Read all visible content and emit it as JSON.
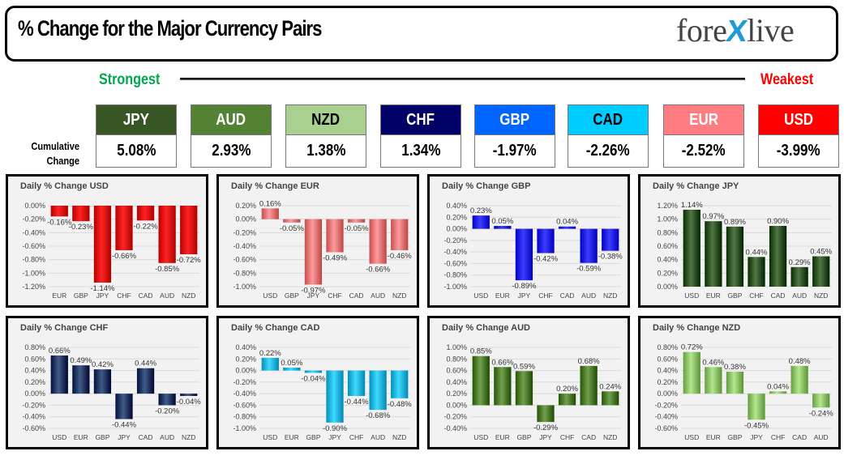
{
  "header": {
    "title": "% Change for the Major Currency Pairs",
    "logo": {
      "left": "fore",
      "x": "X",
      "right": "live"
    }
  },
  "scale": {
    "strongest": "Strongest",
    "weakest": "Weakest"
  },
  "cumulative": {
    "label_line1": "Cumulative",
    "label_line2": "Change",
    "items": [
      {
        "currency": "JPY",
        "value": "5.08%",
        "color": "#375623",
        "text": "#ffffff"
      },
      {
        "currency": "AUD",
        "value": "2.93%",
        "color": "#548235",
        "text": "#ffffff"
      },
      {
        "currency": "NZD",
        "value": "1.38%",
        "color": "#a9d08e",
        "text": "#000000"
      },
      {
        "currency": "CHF",
        "value": "1.34%",
        "color": "#000066",
        "text": "#ffffff"
      },
      {
        "currency": "GBP",
        "value": "-1.97%",
        "color": "#0066ff",
        "text": "#ffffff"
      },
      {
        "currency": "CAD",
        "value": "-2.26%",
        "color": "#00ccff",
        "text": "#000000"
      },
      {
        "currency": "EUR",
        "value": "-2.52%",
        "color": "#ff7c80",
        "text": "#ffffff"
      },
      {
        "currency": "USD",
        "value": "-3.99%",
        "color": "#ff0000",
        "text": "#ffffff"
      }
    ]
  },
  "chart_data": [
    {
      "type": "bar",
      "title": "Daily % Change USD",
      "categories": [
        "EUR",
        "GBP",
        "JPY",
        "CHF",
        "CAD",
        "AUD",
        "NZD"
      ],
      "values": [
        -0.16,
        -0.23,
        -1.14,
        -0.66,
        -0.22,
        -0.85,
        -0.72
      ],
      "labels": [
        "-0.16%",
        "-0.23%",
        "-1.14%",
        "-0.66%",
        "-0.22%",
        "-0.85%",
        "-0.72%"
      ],
      "ylim": [
        -1.2,
        0.0
      ],
      "yticks": [
        "0.00%",
        "-0.20%",
        "-0.40%",
        "-0.60%",
        "-0.80%",
        "-1.00%",
        "-1.20%"
      ],
      "color": "#e00000",
      "grid": true
    },
    {
      "type": "bar",
      "title": "Daily % Change EUR",
      "categories": [
        "USD",
        "GBP",
        "JPY",
        "CHF",
        "CAD",
        "AUD",
        "NZD"
      ],
      "values": [
        0.16,
        -0.05,
        -0.97,
        -0.49,
        -0.05,
        -0.66,
        -0.46
      ],
      "labels": [
        "0.16%",
        "-0.05%",
        "-0.97%",
        "-0.49%",
        "-0.05%",
        "-0.66%",
        "-0.46%"
      ],
      "ylim": [
        -1.0,
        0.2
      ],
      "yticks": [
        "0.20%",
        "0.00%",
        "-0.20%",
        "-0.40%",
        "-0.60%",
        "-0.80%",
        "-1.00%"
      ],
      "color": "#ee7777",
      "grid": true
    },
    {
      "type": "bar",
      "title": "Daily % Change GBP",
      "categories": [
        "USD",
        "EUR",
        "JPY",
        "CHF",
        "CAD",
        "AUD",
        "NZD"
      ],
      "values": [
        0.23,
        0.05,
        -0.89,
        -0.42,
        0.04,
        -0.59,
        -0.38
      ],
      "labels": [
        "0.23%",
        "0.05%",
        "-0.89%",
        "-0.42%",
        "0.04%",
        "-0.59%",
        "-0.38%"
      ],
      "ylim": [
        -1.0,
        0.4
      ],
      "yticks": [
        "0.40%",
        "0.20%",
        "0.00%",
        "-0.20%",
        "-0.40%",
        "-0.60%",
        "-0.80%",
        "-1.00%"
      ],
      "color": "#1a1aee",
      "grid": true
    },
    {
      "type": "bar",
      "title": "Daily % Change JPY",
      "categories": [
        "USD",
        "EUR",
        "GBP",
        "CHF",
        "CAD",
        "AUD",
        "NZD"
      ],
      "values": [
        1.14,
        0.97,
        0.89,
        0.44,
        0.9,
        0.29,
        0.45
      ],
      "labels": [
        "1.14%",
        "0.97%",
        "0.89%",
        "0.44%",
        "0.90%",
        "0.29%",
        "0.45%"
      ],
      "ylim": [
        0.0,
        1.2
      ],
      "yticks": [
        "1.20%",
        "1.00%",
        "0.80%",
        "0.60%",
        "0.40%",
        "0.20%",
        "0.00%"
      ],
      "color": "#2f5420",
      "grid": true
    },
    {
      "type": "bar",
      "title": "Daily % Change CHF",
      "categories": [
        "USD",
        "EUR",
        "GBP",
        "JPY",
        "CAD",
        "AUD",
        "NZD"
      ],
      "values": [
        0.66,
        0.49,
        0.42,
        -0.44,
        0.44,
        -0.2,
        -0.04
      ],
      "labels": [
        "0.66%",
        "0.49%",
        "0.42%",
        "-0.44%",
        "0.44%",
        "-0.20%",
        "-0.04%"
      ],
      "ylim": [
        -0.6,
        0.8
      ],
      "yticks": [
        "0.80%",
        "0.60%",
        "0.40%",
        "0.20%",
        "0.00%",
        "-0.20%",
        "-0.40%",
        "-0.60%"
      ],
      "color": "#1f3864",
      "grid": true
    },
    {
      "type": "bar",
      "title": "Daily % Change CAD",
      "categories": [
        "USD",
        "EUR",
        "GBP",
        "JPY",
        "CHF",
        "AUD",
        "NZD"
      ],
      "values": [
        0.22,
        0.05,
        -0.04,
        -0.9,
        -0.44,
        -0.68,
        -0.48
      ],
      "labels": [
        "0.22%",
        "0.05%",
        "-0.04%",
        "-0.90%",
        "-0.44%",
        "-0.68%",
        "-0.48%"
      ],
      "ylim": [
        -1.0,
        0.4
      ],
      "yticks": [
        "0.40%",
        "0.20%",
        "0.00%",
        "-0.20%",
        "-0.40%",
        "-0.60%",
        "-0.80%",
        "-1.00%"
      ],
      "color": "#1cb8e6",
      "grid": true
    },
    {
      "type": "bar",
      "title": "Daily % Change AUD",
      "categories": [
        "USD",
        "EUR",
        "GBP",
        "JPY",
        "CHF",
        "CAD",
        "NZD"
      ],
      "values": [
        0.85,
        0.66,
        0.59,
        -0.29,
        0.2,
        0.68,
        0.24
      ],
      "labels": [
        "0.85%",
        "0.66%",
        "0.59%",
        "-0.29%",
        "0.20%",
        "0.68%",
        "0.24%"
      ],
      "ylim": [
        -0.4,
        1.0
      ],
      "yticks": [
        "1.00%",
        "0.80%",
        "0.60%",
        "0.40%",
        "0.20%",
        "0.00%",
        "-0.20%",
        "-0.40%"
      ],
      "color": "#4e7d2c",
      "grid": true
    },
    {
      "type": "bar",
      "title": "Daily % Change NZD",
      "categories": [
        "USD",
        "EUR",
        "GBP",
        "JPY",
        "CHF",
        "CAD",
        "AUD"
      ],
      "values": [
        0.72,
        0.46,
        0.38,
        -0.45,
        0.04,
        0.48,
        -0.24
      ],
      "labels": [
        "0.72%",
        "0.46%",
        "0.38%",
        "-0.45%",
        "0.04%",
        "0.48%",
        "-0.24%"
      ],
      "ylim": [
        -0.6,
        0.8
      ],
      "yticks": [
        "0.80%",
        "0.60%",
        "0.40%",
        "0.20%",
        "0.00%",
        "-0.20%",
        "-0.40%",
        "-0.60%"
      ],
      "color": "#8fc46a",
      "grid": true
    }
  ]
}
